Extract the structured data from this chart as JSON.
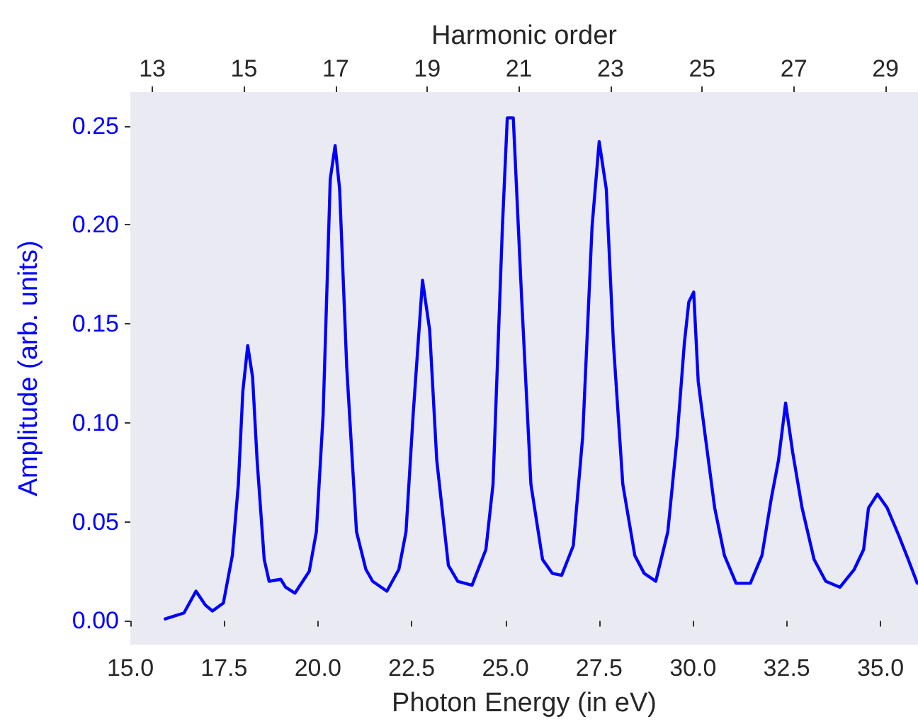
{
  "chart_data": {
    "type": "line",
    "xlabel": "Photon Energy (in eV)",
    "ylabel": "Amplitude (arb. units)",
    "x2label": "Harmonic order",
    "xlim": [
      15,
      36
    ],
    "xticks": [
      {
        "value": 15,
        "label": "15.0"
      },
      {
        "value": 17.5,
        "label": "17.5"
      },
      {
        "value": 20,
        "label": "20.0"
      },
      {
        "value": 22.5,
        "label": "22.5"
      },
      {
        "value": 25,
        "label": "25.0"
      },
      {
        "value": 27.5,
        "label": "27.5"
      },
      {
        "value": 30,
        "label": "30.0"
      },
      {
        "value": 32.5,
        "label": "32.5"
      },
      {
        "value": 35,
        "label": "35.0"
      }
    ],
    "x2lim": [
      12.52,
      29.71
    ],
    "x2ticks": [
      13,
      15,
      17,
      19,
      21,
      23,
      25,
      27,
      29
    ],
    "ylim": [
      -0.012,
      0.267
    ],
    "yticks": [
      {
        "value": 0,
        "label": "0.00"
      },
      {
        "value": 0.05,
        "label": "0.05"
      },
      {
        "value": 0.1,
        "label": "0.10"
      },
      {
        "value": 0.15,
        "label": "0.15"
      },
      {
        "value": 0.2,
        "label": "0.20"
      },
      {
        "value": 0.25,
        "label": "0.25"
      }
    ],
    "grid": false,
    "marker": "none",
    "line_style": "solid",
    "series": [
      {
        "color": "#0000ff",
        "x": [
          15.93,
          16.43,
          16.75,
          17.0,
          17.19,
          17.48,
          17.57,
          17.72,
          17.88,
          18.0,
          18.13,
          18.26,
          18.38,
          18.57,
          18.7,
          19.01,
          19.14,
          19.39,
          19.77,
          19.96,
          20.14,
          20.33,
          20.46,
          20.58,
          20.77,
          21.03,
          21.28,
          21.46,
          21.84,
          22.16,
          22.35,
          22.54,
          22.79,
          22.98,
          23.17,
          23.48,
          23.73,
          24.11,
          24.48,
          24.67,
          24.92,
          25.05,
          25.21,
          25.43,
          25.68,
          25.99,
          26.25,
          26.5,
          26.81,
          27.06,
          27.31,
          27.5,
          27.69,
          27.88,
          28.13,
          28.45,
          28.7,
          29.01,
          29.33,
          29.58,
          29.77,
          29.89,
          30.02,
          30.14,
          30.33,
          30.58,
          30.84,
          31.15,
          31.53,
          31.84,
          32.09,
          32.28,
          32.47,
          32.66,
          32.91,
          33.23,
          33.54,
          33.92,
          34.3,
          34.55,
          34.68,
          34.92,
          35.18,
          35.49,
          35.74,
          35.98
        ],
        "values": [
          0.001,
          0.004,
          0.015,
          0.008,
          0.005,
          0.009,
          0.018,
          0.033,
          0.069,
          0.116,
          0.139,
          0.123,
          0.081,
          0.031,
          0.02,
          0.021,
          0.017,
          0.014,
          0.025,
          0.045,
          0.104,
          0.223,
          0.24,
          0.218,
          0.128,
          0.045,
          0.026,
          0.02,
          0.015,
          0.026,
          0.045,
          0.104,
          0.172,
          0.147,
          0.081,
          0.028,
          0.02,
          0.018,
          0.036,
          0.069,
          0.199,
          0.254,
          0.254,
          0.164,
          0.069,
          0.031,
          0.024,
          0.023,
          0.038,
          0.093,
          0.199,
          0.242,
          0.218,
          0.14,
          0.069,
          0.033,
          0.024,
          0.02,
          0.045,
          0.093,
          0.14,
          0.161,
          0.166,
          0.121,
          0.093,
          0.057,
          0.033,
          0.019,
          0.019,
          0.033,
          0.062,
          0.081,
          0.11,
          0.085,
          0.057,
          0.031,
          0.02,
          0.017,
          0.026,
          0.036,
          0.057,
          0.064,
          0.057,
          0.043,
          0.031,
          0.019
        ]
      }
    ]
  }
}
